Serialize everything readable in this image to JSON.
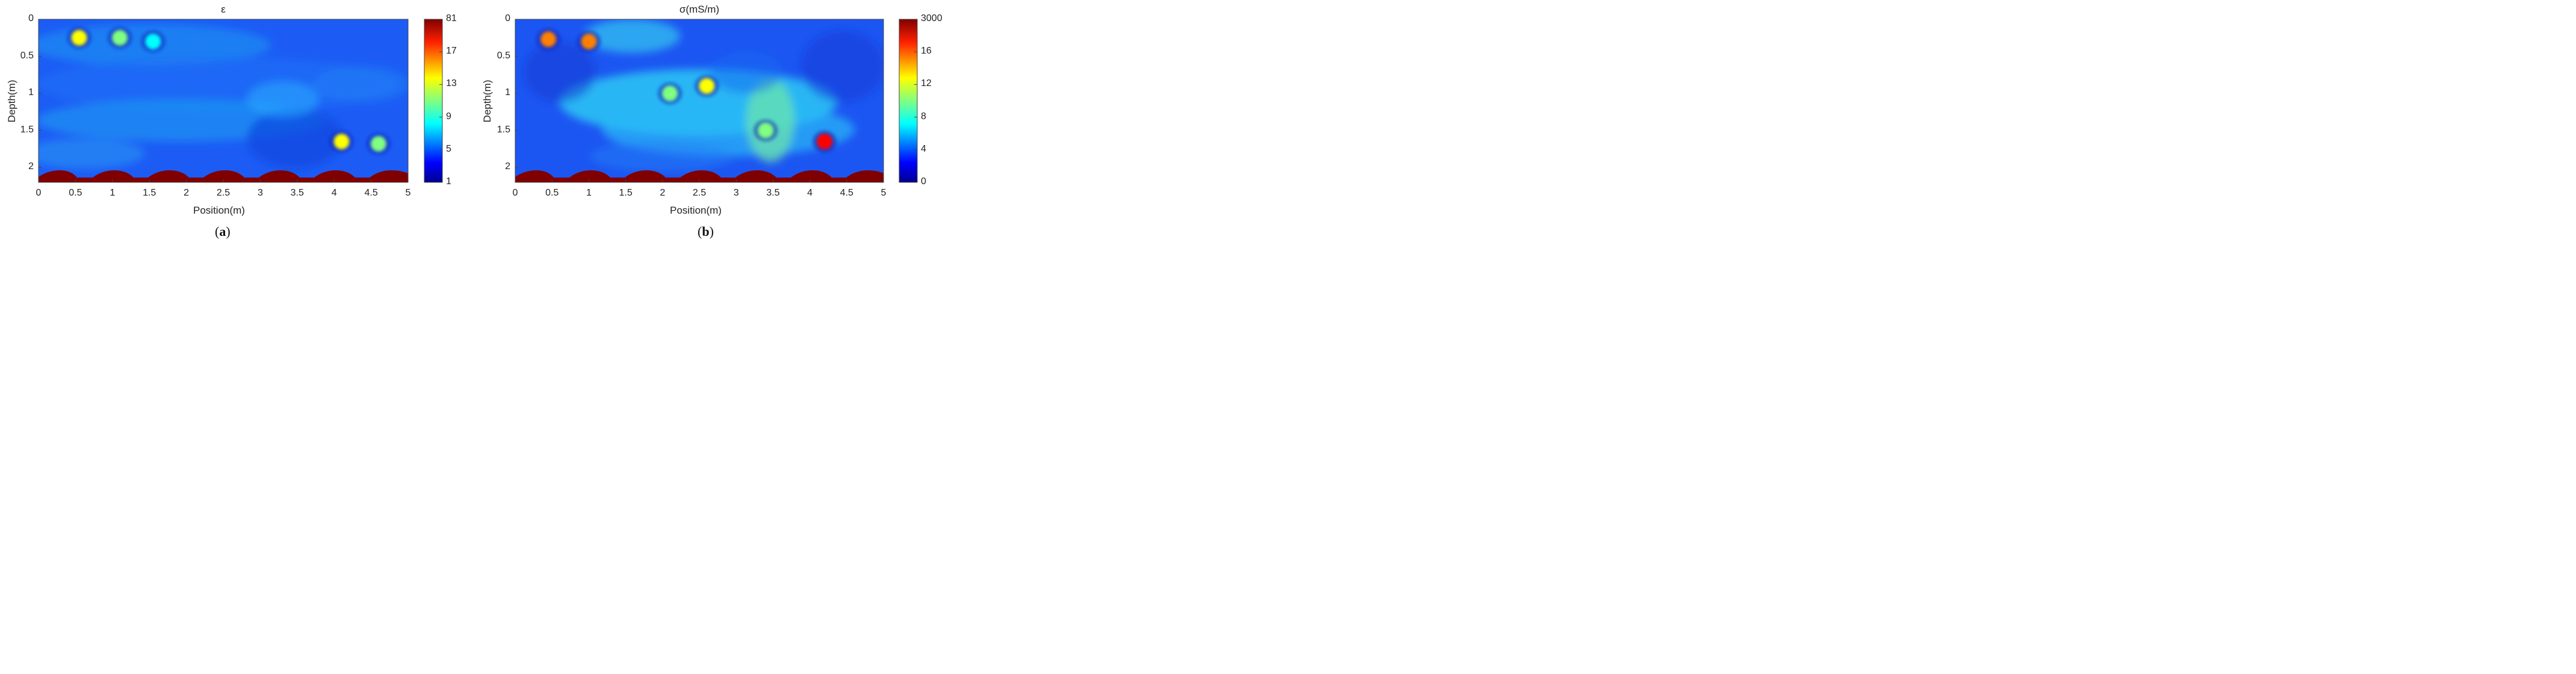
{
  "colors": {
    "bedrock": "#800000",
    "background_field": "#1c5cf5",
    "colormap": [
      "#00008f",
      "#0000ff",
      "#0080ff",
      "#00ffff",
      "#80ff80",
      "#ffff00",
      "#ff8000",
      "#ff0000",
      "#800000"
    ]
  },
  "chart_data": [
    {
      "type": "heatmap",
      "panel_label": "(a)",
      "title": "ε",
      "xlabel": "Position(m)",
      "ylabel": "Depth(m)",
      "xlim": [
        0,
        5
      ],
      "ylim": [
        0,
        2.2
      ],
      "y_reversed": true,
      "xticks": [
        "0",
        "0.5",
        "1",
        "1.5",
        "2",
        "2.5",
        "3",
        "3.5",
        "4",
        "4.5",
        "5"
      ],
      "yticks": [
        "0",
        "0.5",
        "1",
        "1.5",
        "2"
      ],
      "colorbar_ticks": [
        "81",
        "17",
        "13",
        "9",
        "5",
        "1"
      ],
      "features": [
        {
          "x": 0.55,
          "y": 0.25,
          "value": 12
        },
        {
          "x": 1.1,
          "y": 0.25,
          "value": 10
        },
        {
          "x": 1.55,
          "y": 0.3,
          "value": 9
        },
        {
          "x": 4.1,
          "y": 1.65,
          "value": 12
        },
        {
          "x": 4.6,
          "y": 1.68,
          "value": 11
        }
      ]
    },
    {
      "type": "heatmap",
      "panel_label": "(b)",
      "title": "σ(mS/m)",
      "xlabel": "Position(m)",
      "ylabel": "Depth(m)",
      "xlim": [
        0,
        5
      ],
      "ylim": [
        0,
        2.2
      ],
      "y_reversed": true,
      "xticks": [
        "0",
        "0.5",
        "1",
        "1.5",
        "2",
        "2.5",
        "3",
        "3.5",
        "4",
        "4.5",
        "5"
      ],
      "yticks": [
        "0",
        "0.5",
        "1",
        "1.5",
        "2"
      ],
      "colorbar_ticks": [
        "3000",
        "16",
        "12",
        "8",
        "4",
        "0"
      ],
      "features": [
        {
          "x": 0.45,
          "y": 0.27,
          "value": 15
        },
        {
          "x": 1.0,
          "y": 0.3,
          "value": 15
        },
        {
          "x": 2.1,
          "y": 1.0,
          "value": 11
        },
        {
          "x": 2.6,
          "y": 0.9,
          "value": 12
        },
        {
          "x": 3.4,
          "y": 1.5,
          "value": 11
        },
        {
          "x": 4.2,
          "y": 1.65,
          "value": 17
        }
      ]
    }
  ]
}
